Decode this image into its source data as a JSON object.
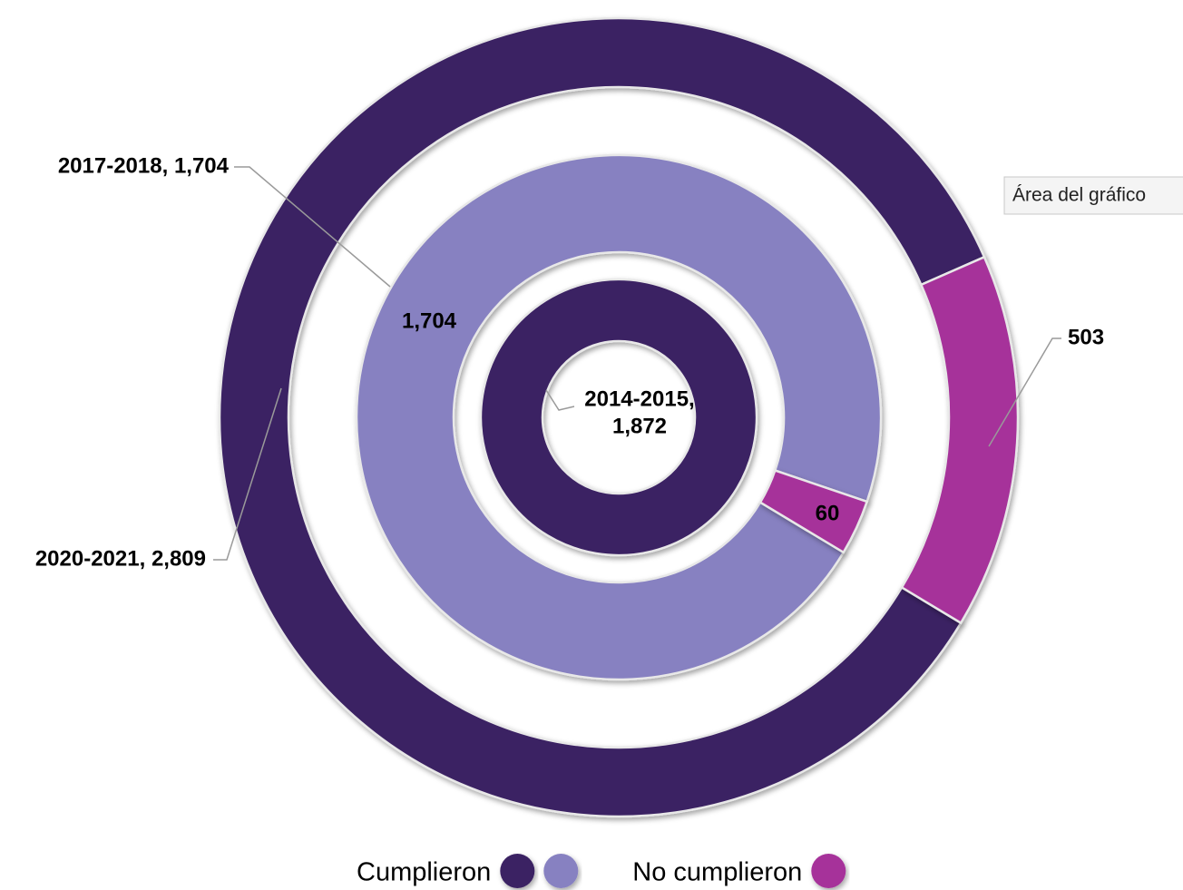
{
  "chart_data": {
    "type": "multi-donut",
    "rotation": 121,
    "rings": [
      {
        "name": "2014-2015",
        "values": [
          1872
        ],
        "colors": [
          "#3b2063"
        ],
        "value_labels": [
          null
        ],
        "callout": [
          "2014-2015,",
          "1,872"
        ]
      },
      {
        "name": "2017-2018",
        "values": [
          1704,
          60
        ],
        "colors": [
          "#8781c1",
          "#a6319a"
        ],
        "value_labels": [
          "1,704",
          "60"
        ],
        "callout": [
          "2017-2018, 1,704"
        ]
      },
      {
        "name": "2020-2021",
        "values": [
          2809,
          503
        ],
        "colors": [
          "#3b2063",
          "#a6319a"
        ],
        "value_labels": [
          null,
          "503"
        ],
        "callout": [
          "2020-2021, 2,809"
        ]
      }
    ],
    "legend": [
      {
        "name": "Cumplieron",
        "colors": [
          "#3b2063",
          "#8781c1"
        ]
      },
      {
        "name": "No cumplieron",
        "colors": [
          "#a6319a"
        ]
      }
    ],
    "tooltip": "Área del gráfico"
  }
}
